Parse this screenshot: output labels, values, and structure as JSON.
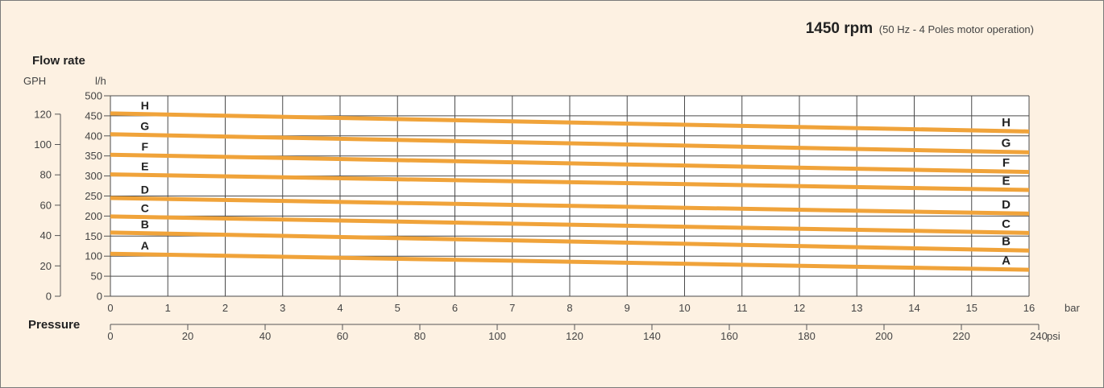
{
  "chart_data": {
    "type": "line",
    "title": "1450 rpm",
    "subtitle": "(50 Hz - 4 Poles motor operation)",
    "ylabel": "Flow rate",
    "xlabel": "Pressure",
    "y_units": [
      "GPH",
      "l/h"
    ],
    "x_units": [
      "bar",
      "psi"
    ],
    "xlim_bar": [
      0,
      16
    ],
    "ylim_lh": [
      0,
      500
    ],
    "ylim_gph": [
      0,
      120
    ],
    "xlim_psi": [
      0,
      240
    ],
    "x_ticks_bar": [
      0,
      1,
      2,
      3,
      4,
      5,
      6,
      7,
      8,
      9,
      10,
      11,
      12,
      13,
      14,
      15,
      16
    ],
    "y_ticks_lh": [
      0,
      50,
      100,
      150,
      200,
      250,
      300,
      350,
      400,
      450,
      500
    ],
    "y_ticks_gph": [
      0,
      20,
      40,
      60,
      80,
      100,
      120
    ],
    "x_ticks_psi": [
      0,
      20,
      40,
      60,
      80,
      100,
      120,
      140,
      160,
      180,
      200,
      220,
      240
    ],
    "grid": true,
    "line_color": "#f0a33a",
    "series": [
      {
        "name": "A",
        "x": [
          0,
          16
        ],
        "y": [
          106,
          66
        ]
      },
      {
        "name": "B",
        "x": [
          0,
          16
        ],
        "y": [
          159,
          114
        ]
      },
      {
        "name": "C",
        "x": [
          0,
          16
        ],
        "y": [
          199,
          158
        ]
      },
      {
        "name": "D",
        "x": [
          0,
          16
        ],
        "y": [
          245,
          206
        ]
      },
      {
        "name": "E",
        "x": [
          0,
          16
        ],
        "y": [
          304,
          265
        ]
      },
      {
        "name": "F",
        "x": [
          0,
          16
        ],
        "y": [
          353,
          310
        ]
      },
      {
        "name": "G",
        "x": [
          0,
          16
        ],
        "y": [
          404,
          359
        ]
      },
      {
        "name": "H",
        "x": [
          0,
          16
        ],
        "y": [
          456,
          411
        ]
      }
    ]
  }
}
